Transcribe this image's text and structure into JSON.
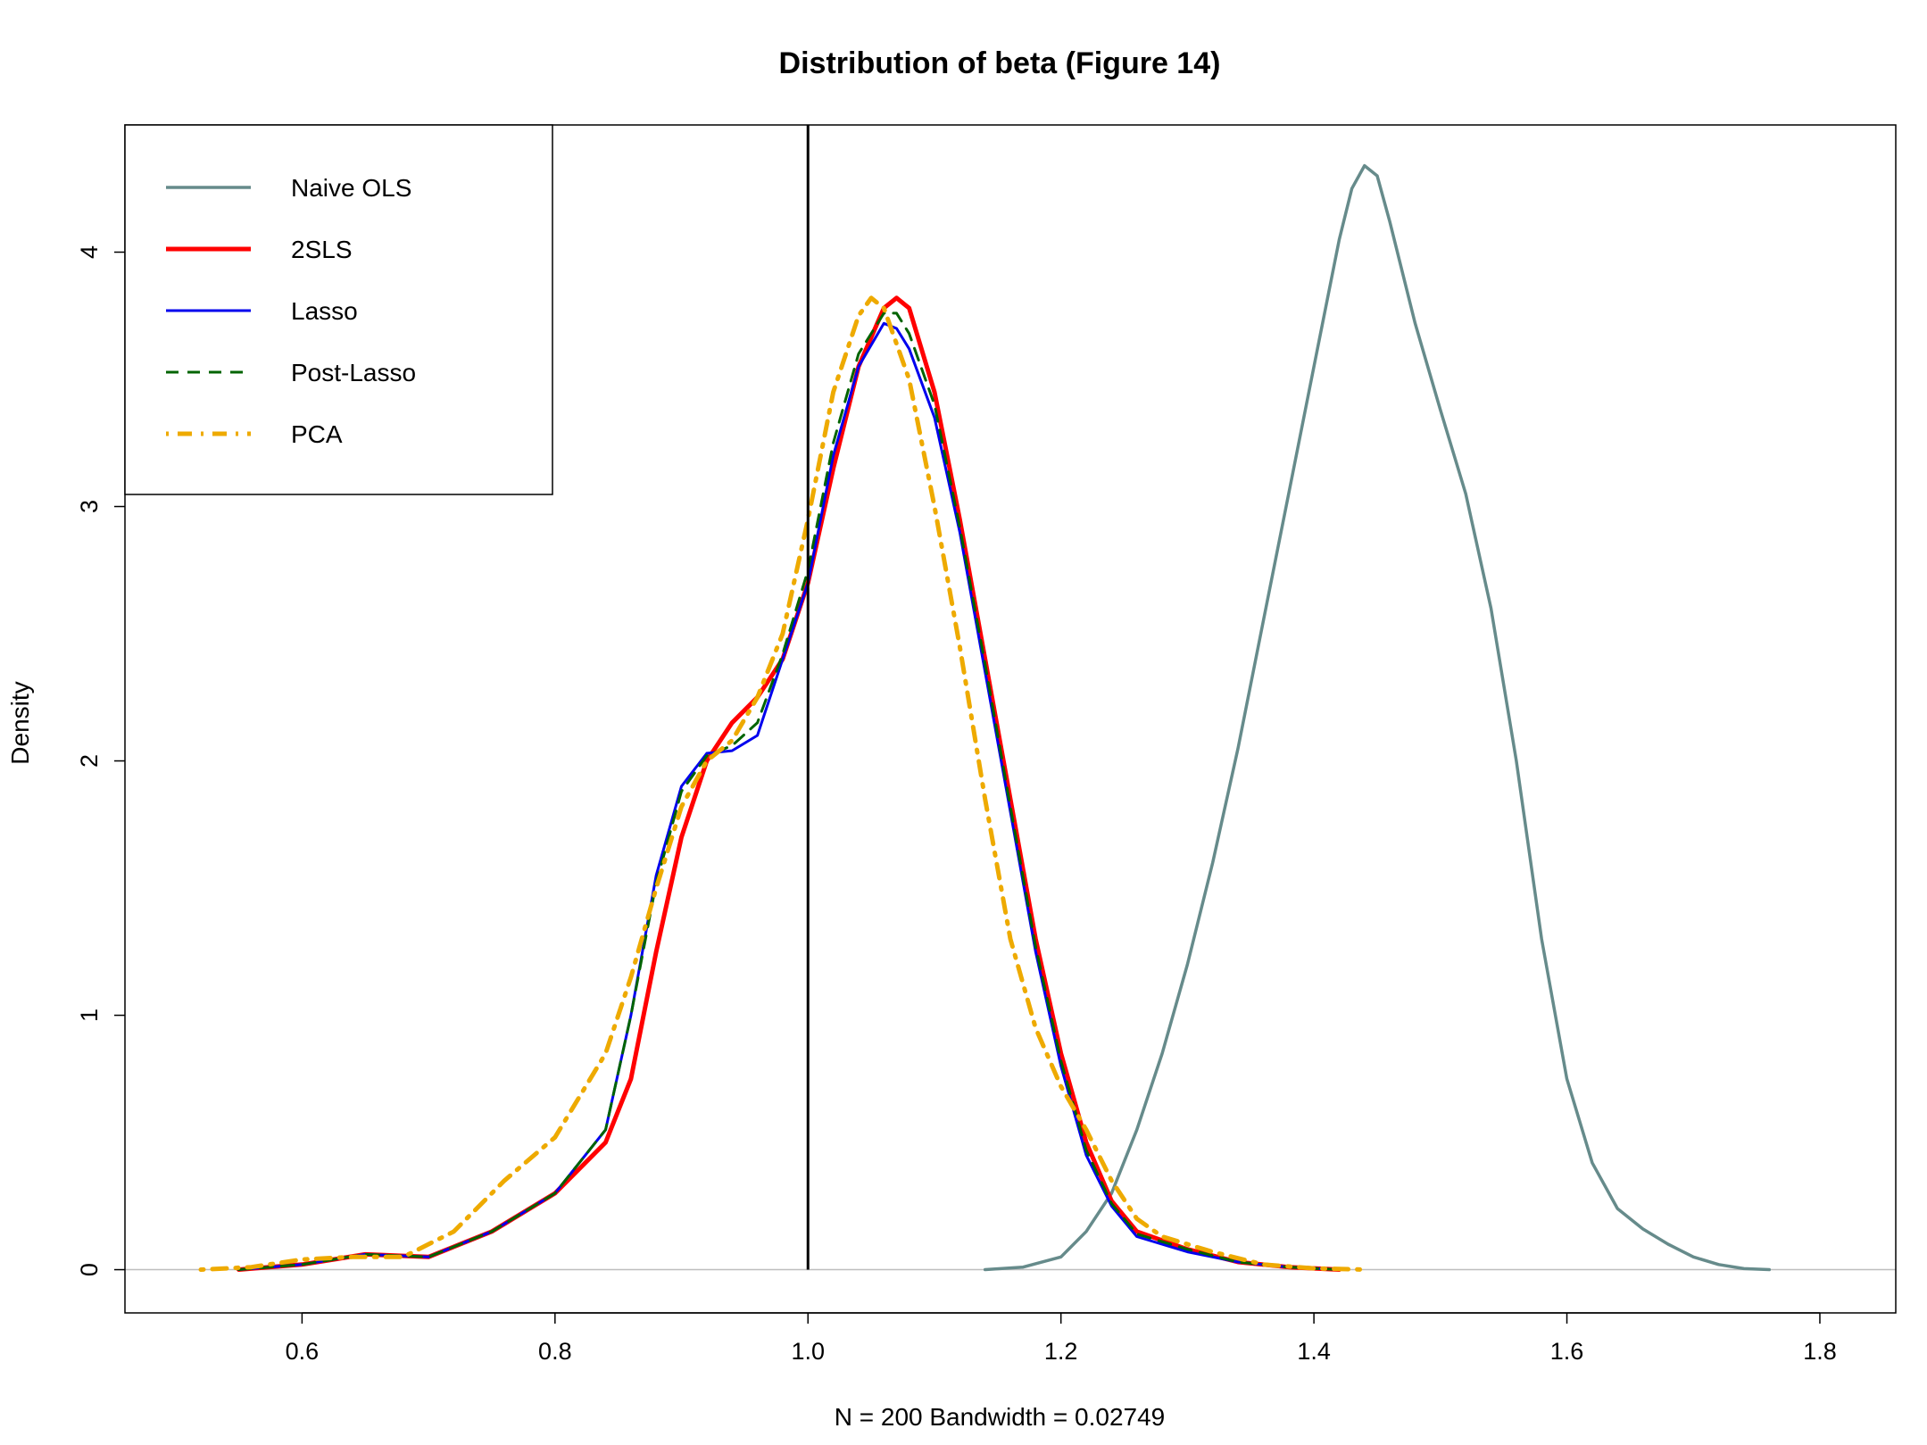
{
  "chart_data": {
    "type": "line",
    "title": "Distribution of beta (Figure 14)",
    "xlabel": "N = 200   Bandwidth = 0.02749",
    "ylabel": "Density",
    "xlim": [
      0.46,
      1.86
    ],
    "ylim": [
      -0.17,
      4.5
    ],
    "x_ticks": [
      0.6,
      0.8,
      1.0,
      1.2,
      1.4,
      1.6,
      1.8
    ],
    "x_tick_labels": [
      "0.6",
      "0.8",
      "1.0",
      "1.2",
      "1.4",
      "1.6",
      "1.8"
    ],
    "y_ticks": [
      0,
      1,
      2,
      3,
      4
    ],
    "y_tick_labels": [
      "0",
      "1",
      "2",
      "3",
      "4"
    ],
    "reference_line": {
      "x": 1.0,
      "color": "#000000"
    },
    "baseline": {
      "y": 0,
      "color": "#bebebe"
    },
    "legend_position": "top-left",
    "series": [
      {
        "name": "Naive OLS",
        "color": "#668b8b",
        "dash": "solid",
        "points": [
          [
            1.14,
            0.0
          ],
          [
            1.17,
            0.01
          ],
          [
            1.2,
            0.05
          ],
          [
            1.22,
            0.15
          ],
          [
            1.24,
            0.3
          ],
          [
            1.26,
            0.55
          ],
          [
            1.28,
            0.85
          ],
          [
            1.3,
            1.2
          ],
          [
            1.32,
            1.6
          ],
          [
            1.34,
            2.05
          ],
          [
            1.36,
            2.55
          ],
          [
            1.38,
            3.05
          ],
          [
            1.4,
            3.55
          ],
          [
            1.42,
            4.05
          ],
          [
            1.43,
            4.25
          ],
          [
            1.44,
            4.34
          ],
          [
            1.45,
            4.3
          ],
          [
            1.46,
            4.12
          ],
          [
            1.48,
            3.72
          ],
          [
            1.5,
            3.38
          ],
          [
            1.52,
            3.05
          ],
          [
            1.54,
            2.6
          ],
          [
            1.56,
            2.0
          ],
          [
            1.58,
            1.3
          ],
          [
            1.6,
            0.75
          ],
          [
            1.62,
            0.42
          ],
          [
            1.64,
            0.24
          ],
          [
            1.66,
            0.16
          ],
          [
            1.68,
            0.1
          ],
          [
            1.7,
            0.05
          ],
          [
            1.72,
            0.02
          ],
          [
            1.74,
            0.004
          ],
          [
            1.76,
            0.0
          ]
        ]
      },
      {
        "name": "2SLS",
        "color": "#ff0000",
        "dash": "solid",
        "points": [
          [
            0.55,
            0.0
          ],
          [
            0.6,
            0.02
          ],
          [
            0.65,
            0.06
          ],
          [
            0.7,
            0.05
          ],
          [
            0.75,
            0.15
          ],
          [
            0.8,
            0.3
          ],
          [
            0.84,
            0.5
          ],
          [
            0.86,
            0.75
          ],
          [
            0.88,
            1.25
          ],
          [
            0.9,
            1.7
          ],
          [
            0.92,
            2.0
          ],
          [
            0.94,
            2.15
          ],
          [
            0.96,
            2.25
          ],
          [
            0.98,
            2.4
          ],
          [
            1.0,
            2.7
          ],
          [
            1.02,
            3.15
          ],
          [
            1.04,
            3.55
          ],
          [
            1.06,
            3.78
          ],
          [
            1.07,
            3.82
          ],
          [
            1.08,
            3.78
          ],
          [
            1.1,
            3.45
          ],
          [
            1.12,
            2.95
          ],
          [
            1.14,
            2.4
          ],
          [
            1.16,
            1.85
          ],
          [
            1.18,
            1.3
          ],
          [
            1.2,
            0.85
          ],
          [
            1.22,
            0.5
          ],
          [
            1.24,
            0.27
          ],
          [
            1.26,
            0.15
          ],
          [
            1.3,
            0.08
          ],
          [
            1.34,
            0.03
          ],
          [
            1.38,
            0.01
          ],
          [
            1.42,
            0.0
          ]
        ]
      },
      {
        "name": "Lasso",
        "color": "#0000ee",
        "dash": "solid",
        "points": [
          [
            0.55,
            0.0
          ],
          [
            0.6,
            0.02
          ],
          [
            0.65,
            0.06
          ],
          [
            0.7,
            0.05
          ],
          [
            0.75,
            0.15
          ],
          [
            0.8,
            0.3
          ],
          [
            0.84,
            0.55
          ],
          [
            0.86,
            1.0
          ],
          [
            0.88,
            1.55
          ],
          [
            0.9,
            1.9
          ],
          [
            0.92,
            2.03
          ],
          [
            0.94,
            2.04
          ],
          [
            0.96,
            2.1
          ],
          [
            0.98,
            2.4
          ],
          [
            1.0,
            2.7
          ],
          [
            1.02,
            3.2
          ],
          [
            1.04,
            3.55
          ],
          [
            1.06,
            3.72
          ],
          [
            1.07,
            3.7
          ],
          [
            1.08,
            3.62
          ],
          [
            1.1,
            3.35
          ],
          [
            1.12,
            2.9
          ],
          [
            1.14,
            2.35
          ],
          [
            1.16,
            1.8
          ],
          [
            1.18,
            1.25
          ],
          [
            1.2,
            0.8
          ],
          [
            1.22,
            0.45
          ],
          [
            1.24,
            0.25
          ],
          [
            1.26,
            0.13
          ],
          [
            1.3,
            0.07
          ],
          [
            1.34,
            0.03
          ],
          [
            1.38,
            0.01
          ],
          [
            1.42,
            0.0
          ]
        ]
      },
      {
        "name": "Post-Lasso",
        "color": "#006400",
        "dash": "dashed",
        "points": [
          [
            0.55,
            0.0
          ],
          [
            0.6,
            0.02
          ],
          [
            0.65,
            0.06
          ],
          [
            0.7,
            0.05
          ],
          [
            0.75,
            0.15
          ],
          [
            0.8,
            0.3
          ],
          [
            0.84,
            0.55
          ],
          [
            0.86,
            1.0
          ],
          [
            0.88,
            1.52
          ],
          [
            0.9,
            1.88
          ],
          [
            0.92,
            2.02
          ],
          [
            0.94,
            2.06
          ],
          [
            0.96,
            2.15
          ],
          [
            0.98,
            2.42
          ],
          [
            1.0,
            2.75
          ],
          [
            1.02,
            3.25
          ],
          [
            1.04,
            3.6
          ],
          [
            1.06,
            3.76
          ],
          [
            1.07,
            3.76
          ],
          [
            1.08,
            3.68
          ],
          [
            1.1,
            3.4
          ],
          [
            1.12,
            2.92
          ],
          [
            1.14,
            2.38
          ],
          [
            1.16,
            1.82
          ],
          [
            1.18,
            1.27
          ],
          [
            1.2,
            0.82
          ],
          [
            1.22,
            0.47
          ],
          [
            1.24,
            0.26
          ],
          [
            1.26,
            0.14
          ],
          [
            1.3,
            0.08
          ],
          [
            1.34,
            0.03
          ],
          [
            1.38,
            0.01
          ],
          [
            1.42,
            0.0
          ]
        ]
      },
      {
        "name": "PCA",
        "color": "#eeaa00",
        "dash": "dotdash",
        "points": [
          [
            0.52,
            0.0
          ],
          [
            0.56,
            0.01
          ],
          [
            0.6,
            0.04
          ],
          [
            0.64,
            0.05
          ],
          [
            0.68,
            0.05
          ],
          [
            0.72,
            0.15
          ],
          [
            0.76,
            0.35
          ],
          [
            0.8,
            0.52
          ],
          [
            0.84,
            0.85
          ],
          [
            0.86,
            1.15
          ],
          [
            0.88,
            1.5
          ],
          [
            0.9,
            1.82
          ],
          [
            0.92,
            2.0
          ],
          [
            0.94,
            2.08
          ],
          [
            0.96,
            2.25
          ],
          [
            0.98,
            2.5
          ],
          [
            1.0,
            2.95
          ],
          [
            1.02,
            3.45
          ],
          [
            1.04,
            3.75
          ],
          [
            1.05,
            3.82
          ],
          [
            1.06,
            3.78
          ],
          [
            1.08,
            3.5
          ],
          [
            1.1,
            3.0
          ],
          [
            1.12,
            2.45
          ],
          [
            1.14,
            1.85
          ],
          [
            1.16,
            1.3
          ],
          [
            1.18,
            0.95
          ],
          [
            1.2,
            0.72
          ],
          [
            1.22,
            0.55
          ],
          [
            1.24,
            0.35
          ],
          [
            1.26,
            0.2
          ],
          [
            1.28,
            0.13
          ],
          [
            1.32,
            0.07
          ],
          [
            1.36,
            0.02
          ],
          [
            1.4,
            0.005
          ],
          [
            1.44,
            0.0
          ]
        ]
      }
    ]
  }
}
